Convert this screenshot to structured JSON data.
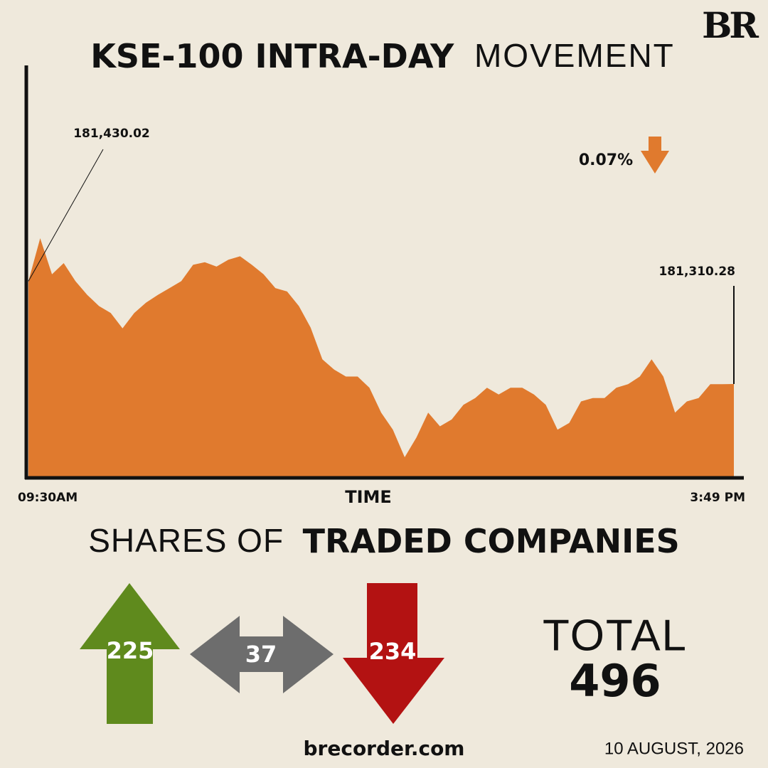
{
  "logo": "BR",
  "chart_data": {
    "type": "area",
    "title": {
      "bold": "KSE-100 INTRA-DAY",
      "light": "MOVEMENT"
    },
    "x_label": "TIME",
    "change": {
      "value": 0.07,
      "label": "0.07%"
    },
    "categories": [
      "09:30AM",
      null,
      null,
      null,
      null,
      null,
      null,
      null,
      null,
      null,
      null,
      null,
      null,
      null,
      null,
      null,
      null,
      null,
      null,
      null,
      null,
      null,
      null,
      null,
      null,
      null,
      null,
      null,
      null,
      null,
      null,
      null,
      null,
      null,
      null,
      null,
      null,
      null,
      null,
      null,
      null,
      null,
      null,
      null,
      null,
      null,
      null,
      null,
      null,
      null,
      null,
      null,
      null,
      null,
      null,
      null,
      null,
      null,
      null,
      null,
      "3:49 PM"
    ],
    "series": [
      {
        "name": "KSE-100",
        "color": "#e07a2e",
        "values": [
          181430.02,
          181480,
          181438,
          181451,
          181430,
          181414,
          181401,
          181393,
          181375,
          181393,
          181405,
          181414,
          181422,
          181430,
          181449,
          181452,
          181447,
          181455,
          181459,
          181449,
          181438,
          181422,
          181418,
          181401,
          181376,
          181339,
          181327,
          181319,
          181319,
          181306,
          181277,
          181257,
          181225,
          181248,
          181277,
          181261,
          181269,
          181286,
          181294,
          181306,
          181298,
          181306,
          181306,
          181298,
          181286,
          181257,
          181265,
          181290,
          181294,
          181294,
          181306,
          181310,
          181319,
          181339,
          181319,
          181277,
          181290,
          181294,
          181310,
          181310,
          181310.28
        ],
        "value_labels": [
          "181,430.02",
          null,
          null,
          null,
          null,
          null,
          null,
          null,
          null,
          null,
          null,
          null,
          null,
          null,
          null,
          null,
          null,
          null,
          null,
          null,
          null,
          null,
          null,
          null,
          null,
          null,
          null,
          null,
          null,
          null,
          null,
          null,
          null,
          null,
          null,
          null,
          null,
          null,
          null,
          null,
          null,
          null,
          null,
          null,
          null,
          null,
          null,
          null,
          null,
          null,
          null,
          null,
          null,
          null,
          null,
          null,
          null,
          null,
          null,
          null,
          "181,310.28"
        ]
      }
    ]
  },
  "shares": {
    "title": {
      "light": "SHARES OF",
      "bold": "TRADED COMPANIES"
    },
    "advanced": 225,
    "unchanged": 37,
    "declined": 234,
    "total_label": "TOTAL",
    "total": 496
  },
  "footer": {
    "website": "brecorder.com",
    "date": "10 AUGUST, 2026"
  }
}
